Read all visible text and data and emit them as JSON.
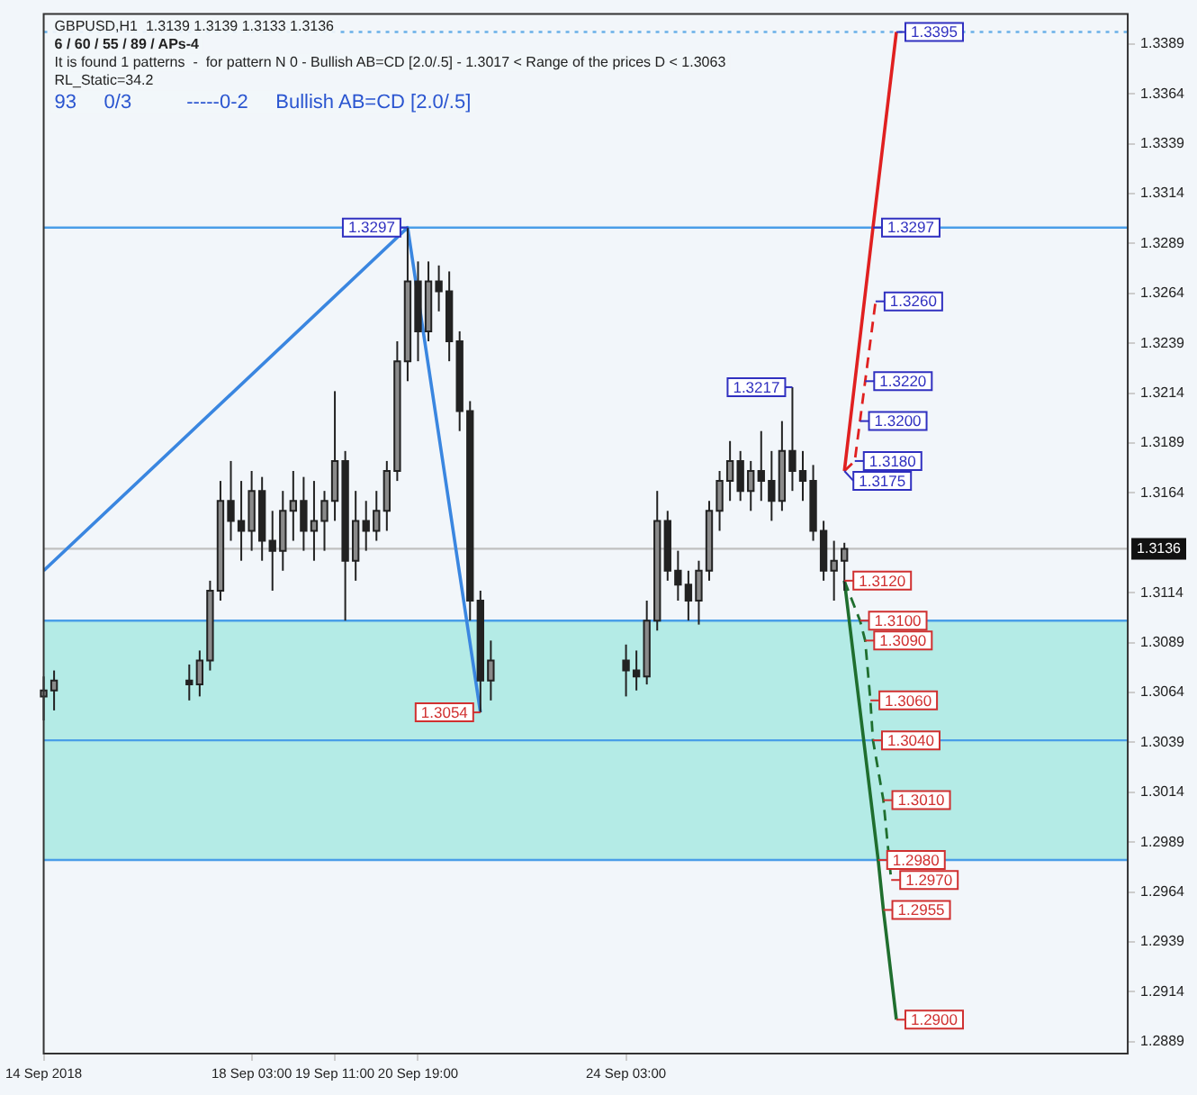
{
  "chart_data": {
    "type": "candlestick",
    "title": "GBPUSD,H1  1.3139 1.3139 1.3133 1.3136",
    "subtitle": "6 / 60 / 55 / 89 / APs-4",
    "annotations": [
      "It is found 1 patterns  -  for pattern N 0 - Bullish AB=CD [2.0/.5] - 1.3017 < Range of the prices D < 1.3063",
      "RL_Static=34.2",
      "93     0/3          -----0-2     Bullish AB=CD [2.0/.5]",
      {
        "text": "1.3297",
        "x": "2018-09-20T15:00",
        "y": 1.3297
      },
      {
        "text": "1.3217",
        "x": "2018-09-26T19:00",
        "y": 1.3217
      },
      {
        "text": "1.3054",
        "x": "2018-09-21T19:00",
        "y": 1.3054
      },
      {
        "text": "1.3395",
        "x": "2018-09-28T11:00",
        "y": 1.3395
      },
      {
        "text": "1.3297",
        "x": "2018-09-28T02:00",
        "y": 1.3297
      },
      {
        "text": "1.3260",
        "x": "2018-09-28T03:00",
        "y": 1.326
      },
      {
        "text": "1.3220",
        "x": "2018-09-27T23:00",
        "y": 1.322
      },
      {
        "text": "1.3200",
        "x": "2018-09-27T21:00",
        "y": 1.32
      },
      {
        "text": "1.3180",
        "x": "2018-09-27T19:00",
        "y": 1.318
      },
      {
        "text": "1.3175",
        "x": "2018-09-27T15:00",
        "y": 1.3175
      },
      {
        "text": "1.3120",
        "x": "2018-09-27T15:00",
        "y": 1.312
      },
      {
        "text": "1.3100",
        "x": "2018-09-27T21:00",
        "y": 1.31
      },
      {
        "text": "1.3090",
        "x": "2018-09-27T23:00",
        "y": 1.309
      },
      {
        "text": "1.3060",
        "x": "2018-09-28T01:00",
        "y": 1.306
      },
      {
        "text": "1.3040",
        "x": "2018-09-28T02:00",
        "y": 1.304
      },
      {
        "text": "1.3010",
        "x": "2018-09-28T06:00",
        "y": 1.301
      },
      {
        "text": "1.2980",
        "x": "2018-09-28T04:00",
        "y": 1.298
      },
      {
        "text": "1.2970",
        "x": "2018-09-28T09:00",
        "y": 1.297
      },
      {
        "text": "1.2955",
        "x": "2018-09-28T06:00",
        "y": 1.2955
      },
      {
        "text": "1.2900",
        "x": "2018-09-28T11:00",
        "y": 1.29
      }
    ],
    "x": [
      "2018-09-14T19:00",
      "2018-09-14T23:00",
      "2018-09-17T03:00",
      "2018-09-17T07:00",
      "2018-09-17T11:00",
      "2018-09-17T15:00",
      "2018-09-17T19:00",
      "2018-09-17T23:00",
      "2018-09-18T03:00",
      "2018-09-18T07:00",
      "2018-09-18T11:00",
      "2018-09-18T15:00",
      "2018-09-18T19:00",
      "2018-09-18T23:00",
      "2018-09-19T03:00",
      "2018-09-19T07:00",
      "2018-09-19T11:00",
      "2018-09-19T15:00",
      "2018-09-19T19:00",
      "2018-09-19T23:00",
      "2018-09-20T03:00",
      "2018-09-20T07:00",
      "2018-09-20T11:00",
      "2018-09-20T15:00",
      "2018-09-20T19:00",
      "2018-09-20T23:00",
      "2018-09-21T03:00",
      "2018-09-21T07:00",
      "2018-09-21T11:00",
      "2018-09-21T15:00",
      "2018-09-21T19:00",
      "2018-09-21T23:00",
      "2018-09-24T03:00",
      "2018-09-24T07:00",
      "2018-09-24T11:00",
      "2018-09-24T15:00",
      "2018-09-24T19:00",
      "2018-09-24T23:00",
      "2018-09-25T03:00",
      "2018-09-25T07:00",
      "2018-09-25T11:00",
      "2018-09-25T15:00",
      "2018-09-25T19:00",
      "2018-09-25T23:00",
      "2018-09-26T03:00",
      "2018-09-26T07:00",
      "2018-09-26T11:00",
      "2018-09-26T15:00",
      "2018-09-26T19:00",
      "2018-09-26T23:00",
      "2018-09-27T03:00",
      "2018-09-27T07:00",
      "2018-09-27T11:00",
      "2018-09-27T15:00"
    ],
    "ohlc": [
      [
        1.3062,
        1.3072,
        1.305,
        1.3065
      ],
      [
        1.3065,
        1.3075,
        1.3055,
        1.307
      ],
      [
        1.307,
        1.3078,
        1.306,
        1.3068
      ],
      [
        1.3068,
        1.3085,
        1.3062,
        1.308
      ],
      [
        1.308,
        1.312,
        1.3075,
        1.3115
      ],
      [
        1.3115,
        1.317,
        1.311,
        1.316
      ],
      [
        1.316,
        1.318,
        1.314,
        1.315
      ],
      [
        1.315,
        1.317,
        1.313,
        1.3145
      ],
      [
        1.3145,
        1.3175,
        1.3135,
        1.3165
      ],
      [
        1.3165,
        1.3172,
        1.313,
        1.314
      ],
      [
        1.314,
        1.3155,
        1.3115,
        1.3135
      ],
      [
        1.3135,
        1.3165,
        1.3125,
        1.3155
      ],
      [
        1.3155,
        1.3175,
        1.314,
        1.316
      ],
      [
        1.316,
        1.3172,
        1.3135,
        1.3145
      ],
      [
        1.3145,
        1.317,
        1.313,
        1.315
      ],
      [
        1.315,
        1.3165,
        1.3135,
        1.316
      ],
      [
        1.316,
        1.3215,
        1.315,
        1.318
      ],
      [
        1.318,
        1.3185,
        1.31,
        1.313
      ],
      [
        1.313,
        1.3165,
        1.312,
        1.315
      ],
      [
        1.315,
        1.316,
        1.3135,
        1.3145
      ],
      [
        1.3145,
        1.3165,
        1.314,
        1.3155
      ],
      [
        1.3155,
        1.318,
        1.3145,
        1.3175
      ],
      [
        1.3175,
        1.324,
        1.317,
        1.323
      ],
      [
        1.323,
        1.3297,
        1.322,
        1.327
      ],
      [
        1.327,
        1.328,
        1.323,
        1.3245
      ],
      [
        1.3245,
        1.328,
        1.324,
        1.327
      ],
      [
        1.327,
        1.3278,
        1.3255,
        1.3265
      ],
      [
        1.3265,
        1.3275,
        1.323,
        1.324
      ],
      [
        1.324,
        1.3245,
        1.3195,
        1.3205
      ],
      [
        1.3205,
        1.321,
        1.31,
        1.311
      ],
      [
        1.311,
        1.3115,
        1.3054,
        1.307
      ],
      [
        1.307,
        1.309,
        1.306,
        1.308
      ],
      [
        1.308,
        1.3088,
        1.3062,
        1.3075
      ],
      [
        1.3075,
        1.3085,
        1.3065,
        1.3072
      ],
      [
        1.3072,
        1.311,
        1.3068,
        1.31
      ],
      [
        1.31,
        1.3165,
        1.3095,
        1.315
      ],
      [
        1.315,
        1.3155,
        1.312,
        1.3125
      ],
      [
        1.3125,
        1.3135,
        1.311,
        1.3118
      ],
      [
        1.3118,
        1.3125,
        1.31,
        1.311
      ],
      [
        1.311,
        1.313,
        1.3098,
        1.3125
      ],
      [
        1.3125,
        1.316,
        1.312,
        1.3155
      ],
      [
        1.3155,
        1.3175,
        1.3145,
        1.317
      ],
      [
        1.317,
        1.319,
        1.316,
        1.318
      ],
      [
        1.318,
        1.3185,
        1.316,
        1.3165
      ],
      [
        1.3165,
        1.318,
        1.3155,
        1.3175
      ],
      [
        1.3175,
        1.3195,
        1.316,
        1.317
      ],
      [
        1.317,
        1.3185,
        1.315,
        1.316
      ],
      [
        1.316,
        1.32,
        1.3155,
        1.3185
      ],
      [
        1.3185,
        1.3217,
        1.3165,
        1.3175
      ],
      [
        1.3175,
        1.3185,
        1.316,
        1.317
      ],
      [
        1.317,
        1.3178,
        1.314,
        1.3145
      ],
      [
        1.3145,
        1.315,
        1.312,
        1.3125
      ],
      [
        1.3125,
        1.314,
        1.311,
        1.313
      ],
      [
        1.313,
        1.3139,
        1.3115,
        1.3136
      ]
    ],
    "series": [
      {
        "type": "line",
        "color": "#3a86e0",
        "x": [
          "2018-09-14T19:00",
          "2018-09-20T15:00",
          "2018-09-21T19:00"
        ],
        "values": [
          1.3125,
          1.3297,
          1.3054
        ]
      },
      {
        "type": "line",
        "color": "#e02020",
        "x": [
          "2018-09-27T15:00",
          "2018-09-28T02:00",
          "2018-09-28T11:00"
        ],
        "values": [
          1.3175,
          1.3297,
          1.3395
        ]
      },
      {
        "type": "line",
        "color": "#e02020",
        "line_style": "dashed",
        "x": [
          "2018-09-27T15:00",
          "2018-09-27T19:00",
          "2018-09-27T21:00",
          "2018-09-27T23:00",
          "2018-09-28T03:00"
        ],
        "values": [
          1.3175,
          1.318,
          1.32,
          1.322,
          1.326
        ]
      },
      {
        "type": "line",
        "color": "#1f6e2e",
        "x": [
          "2018-09-27T15:00",
          "2018-09-28T04:00",
          "2018-09-28T06:00",
          "2018-09-28T11:00"
        ],
        "values": [
          1.312,
          1.298,
          1.2955,
          1.29
        ]
      },
      {
        "type": "line",
        "color": "#1f6e2e",
        "line_style": "dashed",
        "x": [
          "2018-09-27T15:00",
          "2018-09-27T21:00",
          "2018-09-27T23:00",
          "2018-09-28T01:00",
          "2018-09-28T02:00",
          "2018-09-28T06:00",
          "2018-09-28T09:00"
        ],
        "values": [
          1.312,
          1.31,
          1.309,
          1.306,
          1.304,
          1.301,
          1.297
        ]
      }
    ],
    "xlim": [
      "2018-09-14T19:00",
      "2018-10-02T04:00"
    ],
    "xticks": [
      {
        "value": "2018-09-14T19:00",
        "label": "14 Sep 2018"
      },
      {
        "value": "2018-09-18T03:00",
        "label": "18 Sep 03:00"
      },
      {
        "value": "2018-09-19T11:00",
        "label": "19 Sep 11:00"
      },
      {
        "value": "2018-09-20T19:00",
        "label": "20 Sep 19:00"
      },
      {
        "value": "2018-09-24T03:00",
        "label": "24 Sep 03:00"
      }
    ],
    "ylim": [
      1.2883,
      1.3404
    ],
    "yticks": [
      1.2889,
      1.2914,
      1.2939,
      1.2964,
      1.2989,
      1.3014,
      1.3039,
      1.3064,
      1.3089,
      1.3114,
      1.3164,
      1.3189,
      1.3214,
      1.3239,
      1.3264,
      1.3289,
      1.3314,
      1.3339,
      1.3364,
      1.3389
    ],
    "bands": [
      {
        "axis": "y",
        "from": 1.298,
        "to": 1.31,
        "color": "#b4ebe6"
      }
    ],
    "ref_lines": [
      {
        "axis": "y",
        "value": 1.3395,
        "color": "#6ab0e8",
        "line_style": "dotted"
      },
      {
        "axis": "y",
        "value": 1.3297,
        "color": "#4a9ee8"
      },
      {
        "axis": "y",
        "value": 1.31,
        "color": "#4a9ee8"
      },
      {
        "axis": "y",
        "value": 1.304,
        "color": "#4a9ee8"
      },
      {
        "axis": "y",
        "value": 1.298,
        "color": "#4a9ee8"
      },
      {
        "axis": "y",
        "value": 1.3136,
        "color": "#c0c0c0",
        "label": "1.3136"
      }
    ],
    "grid": false,
    "legend": false
  }
}
